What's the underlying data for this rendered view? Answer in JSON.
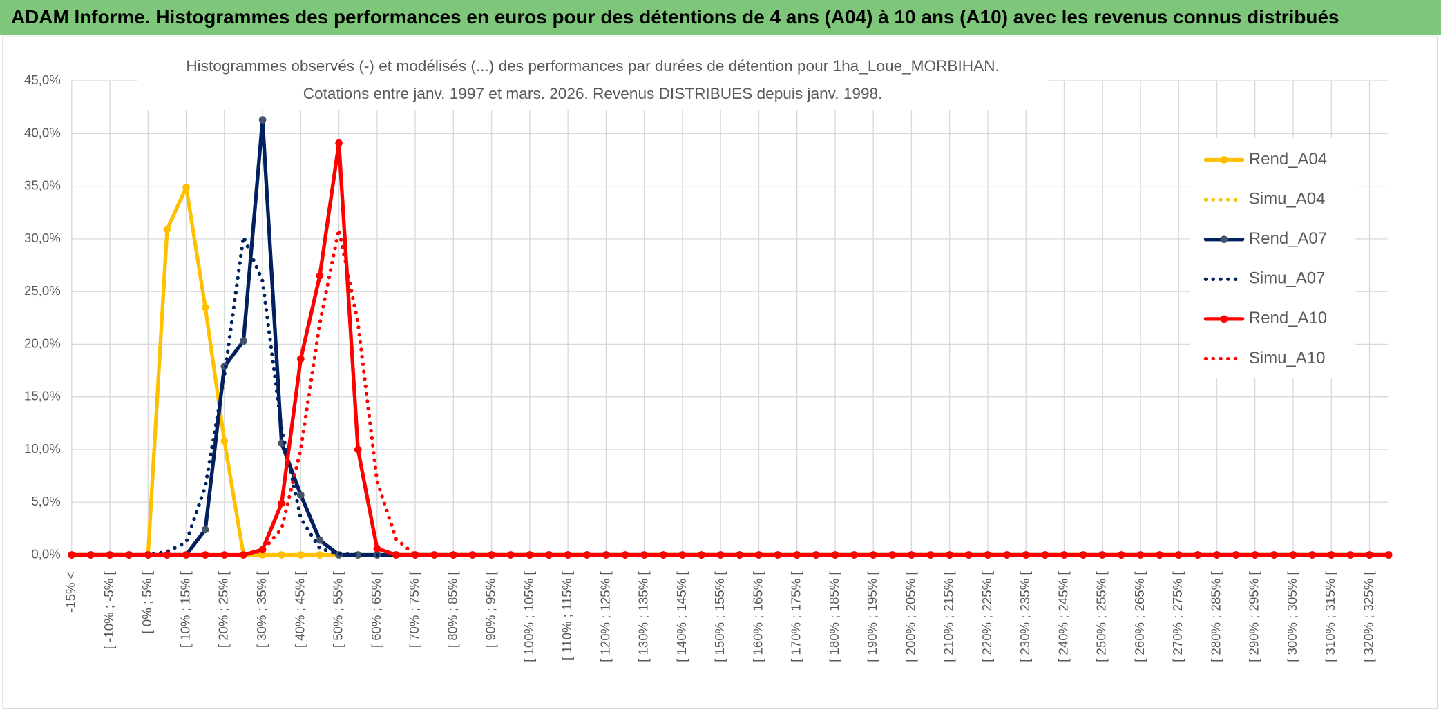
{
  "chart_data": {
    "type": "line",
    "title": "ADAM Informe. Histogrammes des performances en euros pour des détentions de 4 ans (A04) à 10 ans (A10) avec les revenus connus distribués",
    "subtitle": [
      "Histogrammes observés (-) et modélisés (...) des performances par durées de détention pour 1ha_Loue_MORBIHAN.",
      "Cotations entre janv. 1997 et mars. 2026. Revenus DISTRIBUES depuis janv. 1998."
    ],
    "categories": [
      "-15% <",
      null,
      "[ -10% ; -5% [",
      null,
      "[ 0% ; 5% [",
      null,
      "[ 10% ; 15% [",
      null,
      "[ 20% ; 25% [",
      null,
      "[ 30% ; 35% [",
      null,
      "[ 40% ; 45% [",
      null,
      "[ 50% ; 55% [",
      null,
      "[ 60% ; 65% [",
      null,
      "[ 70% ; 75% [",
      null,
      "[ 80% ; 85% [",
      null,
      "[ 90% ; 95% [",
      null,
      "[ 100% ; 105% [",
      null,
      "[ 110% ; 115% [",
      null,
      "[ 120% ; 125% [",
      null,
      "[ 130% ; 135% [",
      null,
      "[ 140% ; 145% [",
      null,
      "[ 150% ; 155% [",
      null,
      "[ 160% ; 165% [",
      null,
      "[ 170% ; 175% [",
      null,
      "[ 180% ; 185% [",
      null,
      "[ 190% ; 195% [",
      null,
      "[ 200% ; 205% [",
      null,
      "[ 210% ; 215% [",
      null,
      "[ 220% ; 225% [",
      null,
      "[ 230% ; 235% [",
      null,
      "[ 240% ; 245% [",
      null,
      "[ 250% ; 255% [",
      null,
      "[ 260% ; 265% [",
      null,
      "[ 270% ; 275% [",
      null,
      "[ 280% ; 285% [",
      null,
      "[ 290% ; 295% [",
      null,
      "[ 300% ; 305% [",
      null,
      "[ 310% ; 315% [",
      null,
      "[ 320% ; 325% [",
      null
    ],
    "series": [
      {
        "name": "Rend_A04",
        "color": "#ffc000",
        "style": "solid",
        "marker": true,
        "values": [
          0,
          0,
          0,
          0,
          0,
          30.9,
          34.9,
          23.5,
          10.8,
          0,
          0,
          0,
          0,
          0,
          0,
          0,
          0,
          0,
          0,
          0,
          0,
          0,
          0,
          0,
          0,
          0,
          0,
          0,
          0,
          0,
          0,
          0,
          0,
          0,
          0,
          0,
          0,
          0,
          0,
          0,
          0,
          0,
          0,
          0,
          0,
          0,
          0,
          0,
          0,
          0,
          0,
          0,
          0,
          0,
          0,
          0,
          0,
          0,
          0,
          0,
          0,
          0,
          0,
          0,
          0,
          0,
          0,
          0,
          0,
          0
        ]
      },
      {
        "name": "Simu_A04",
        "color": "#ffc000",
        "style": "dotted",
        "marker": false,
        "values": [
          0,
          0,
          0,
          0,
          0,
          0,
          0,
          0,
          0,
          0,
          0,
          0,
          0,
          0,
          0,
          0,
          0,
          0,
          0,
          0,
          0,
          0,
          0,
          0,
          0,
          0,
          0,
          0,
          0,
          0,
          0,
          0,
          0,
          0,
          0,
          0,
          0,
          0,
          0,
          0,
          0,
          0,
          0,
          0,
          0,
          0,
          0,
          0,
          0,
          0,
          0,
          0,
          0,
          0,
          0,
          0,
          0,
          0,
          0,
          0,
          0,
          0,
          0,
          0,
          0,
          0,
          0,
          0,
          0,
          0
        ]
      },
      {
        "name": "Rend_A07",
        "color": "#002060",
        "style": "solid",
        "marker": true,
        "values": [
          0,
          0,
          0,
          0,
          0,
          0,
          0,
          2.4,
          17.9,
          20.3,
          41.3,
          10.6,
          5.7,
          1.4,
          0,
          0,
          0,
          0,
          0,
          0,
          0,
          0,
          0,
          0,
          0,
          0,
          0,
          0,
          0,
          0,
          0,
          0,
          0,
          0,
          0,
          0,
          0,
          0,
          0,
          0,
          0,
          0,
          0,
          0,
          0,
          0,
          0,
          0,
          0,
          0,
          0,
          0,
          0,
          0,
          0,
          0,
          0,
          0,
          0,
          0,
          0,
          0,
          0,
          0,
          0,
          0,
          0,
          0,
          0,
          0
        ]
      },
      {
        "name": "Simu_A07",
        "color": "#002060",
        "style": "dotted",
        "marker": false,
        "values": [
          0,
          0,
          0,
          0,
          0,
          0.3,
          1.2,
          6.5,
          17,
          30.2,
          26,
          12,
          3.5,
          0.6,
          0.1,
          0,
          0,
          0,
          0,
          0,
          0,
          0,
          0,
          0,
          0,
          0,
          0,
          0,
          0,
          0,
          0,
          0,
          0,
          0,
          0,
          0,
          0,
          0,
          0,
          0,
          0,
          0,
          0,
          0,
          0,
          0,
          0,
          0,
          0,
          0,
          0,
          0,
          0,
          0,
          0,
          0,
          0,
          0,
          0,
          0,
          0,
          0,
          0,
          0,
          0,
          0,
          0,
          0,
          0,
          0
        ]
      },
      {
        "name": "Rend_A10",
        "color": "#ff0000",
        "style": "solid",
        "marker": true,
        "values": [
          0,
          0,
          0,
          0,
          0,
          0,
          0,
          0,
          0,
          0,
          0.5,
          4.9,
          18.6,
          26.5,
          39.1,
          10,
          0.6,
          0,
          0,
          0,
          0,
          0,
          0,
          0,
          0,
          0,
          0,
          0,
          0,
          0,
          0,
          0,
          0,
          0,
          0,
          0,
          0,
          0,
          0,
          0,
          0,
          0,
          0,
          0,
          0,
          0,
          0,
          0,
          0,
          0,
          0,
          0,
          0,
          0,
          0,
          0,
          0,
          0,
          0,
          0,
          0,
          0,
          0,
          0,
          0,
          0,
          0,
          0,
          0,
          0
        ]
      },
      {
        "name": "Simu_A10",
        "color": "#ff0000",
        "style": "dotted",
        "marker": false,
        "values": [
          0,
          0,
          0,
          0,
          0,
          0,
          0,
          0,
          0,
          0,
          0.4,
          2.5,
          10,
          22,
          30.9,
          22,
          7,
          1.5,
          0,
          0,
          0,
          0,
          0,
          0,
          0,
          0,
          0,
          0,
          0,
          0,
          0,
          0,
          0,
          0,
          0,
          0,
          0,
          0,
          0,
          0,
          0,
          0,
          0,
          0,
          0,
          0,
          0,
          0,
          0,
          0,
          0,
          0,
          0,
          0,
          0,
          0,
          0,
          0,
          0,
          0,
          0,
          0,
          0,
          0,
          0,
          0,
          0,
          0,
          0,
          0
        ]
      }
    ],
    "ylim": [
      0,
      45
    ],
    "yticks": [
      {
        "value": 0,
        "label": "0,0%"
      },
      {
        "value": 5,
        "label": "5,0%"
      },
      {
        "value": 10,
        "label": "10,0%"
      },
      {
        "value": 15,
        "label": "15,0%"
      },
      {
        "value": 20,
        "label": "20,0%"
      },
      {
        "value": 25,
        "label": "25,0%"
      },
      {
        "value": 30,
        "label": "30,0%"
      },
      {
        "value": 35,
        "label": "35,0%"
      },
      {
        "value": 40,
        "label": "40,0%"
      },
      {
        "value": 45,
        "label": "45,0%"
      }
    ],
    "grid": true,
    "legend": "right"
  }
}
